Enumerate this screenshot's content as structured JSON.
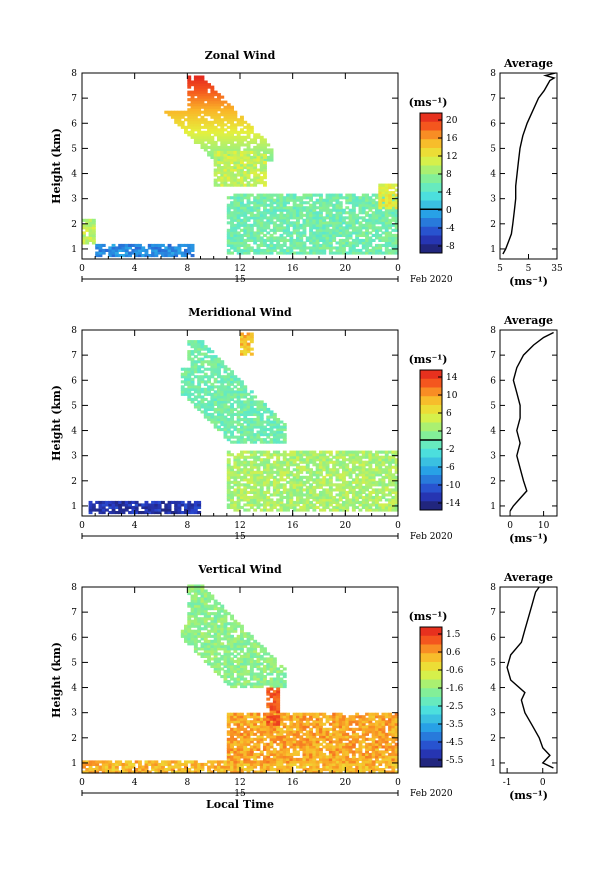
{
  "chart_data": [
    {
      "type": "heatmap",
      "title": "Zonal Wind",
      "ylabel": "Height (km)",
      "x_ticks": [
        "0",
        "4",
        "8",
        "12",
        "16",
        "20",
        "0"
      ],
      "y_ticks": [
        "1",
        "2",
        "3",
        "4",
        "5",
        "6",
        "7",
        "8"
      ],
      "ylim": [
        0.6,
        8.0
      ],
      "xlim": [
        0,
        24
      ],
      "date_label": "15",
      "month_label": "Feb 2020",
      "colorbar": {
        "unit": "(ms⁻¹)",
        "ticks": [
          "20",
          "16",
          "12",
          "8",
          "4",
          "0",
          "-4",
          "-8"
        ],
        "min": -10,
        "max": 22,
        "zero_line": 0
      },
      "average": {
        "title": "Average",
        "unit": "(ms⁻¹)",
        "x_ticks": [
          "5",
          "5",
          "35"
        ],
        "xlim": [
          -5,
          35
        ],
        "profile": [
          [
            -3,
            0.8
          ],
          [
            -1,
            1.0
          ],
          [
            1,
            1.3
          ],
          [
            3,
            1.6
          ],
          [
            4,
            2.0
          ],
          [
            5,
            2.5
          ],
          [
            6,
            3.0
          ],
          [
            6,
            3.5
          ],
          [
            7,
            4.0
          ],
          [
            8,
            4.5
          ],
          [
            9,
            5.0
          ],
          [
            11,
            5.5
          ],
          [
            14,
            6.0
          ],
          [
            18,
            6.5
          ],
          [
            22,
            7.0
          ],
          [
            26,
            7.3
          ],
          [
            28,
            7.5
          ],
          [
            30,
            7.7
          ],
          [
            33,
            7.8
          ],
          [
            27,
            7.9
          ],
          [
            34,
            8.0
          ]
        ]
      },
      "blobs": [
        {
          "t0": 6.0,
          "t1": 14.4,
          "h0": 4.5,
          "h1": 7.8,
          "v": "grad"
        },
        {
          "t0": 10.0,
          "t1": 14.0,
          "h0": 3.5,
          "h1": 4.8,
          "v": 10
        },
        {
          "t0": 11.0,
          "t1": 24.0,
          "h0": 0.8,
          "h1": 3.2,
          "v": 6
        },
        {
          "t0": 0.0,
          "t1": 1.0,
          "h0": 1.2,
          "h1": 2.2,
          "v": 10
        },
        {
          "t0": 1.0,
          "t1": 8.5,
          "h0": 0.7,
          "h1": 1.1,
          "v": -2
        },
        {
          "t0": 22.5,
          "t1": 24,
          "h0": 2.6,
          "h1": 3.6,
          "v": 12
        }
      ]
    },
    {
      "type": "heatmap",
      "title": "Meridional Wind",
      "ylabel": "Height (km)",
      "x_ticks": [
        "0",
        "4",
        "8",
        "12",
        "16",
        "20",
        "0"
      ],
      "y_ticks": [
        "1",
        "2",
        "3",
        "4",
        "5",
        "6",
        "7",
        "8"
      ],
      "ylim": [
        0.6,
        8.0
      ],
      "xlim": [
        0,
        24
      ],
      "date_label": "15",
      "month_label": "Feb 2020",
      "colorbar": {
        "unit": "(ms⁻¹)",
        "ticks": [
          "14",
          "10",
          "6",
          "2",
          "-2",
          "-6",
          "-10",
          "-14"
        ],
        "min": -16,
        "max": 16,
        "zero_line": 0
      },
      "average": {
        "title": "Average",
        "unit": "(ms⁻¹)",
        "x_ticks": [
          "0",
          "10"
        ],
        "xlim": [
          -3,
          14
        ],
        "profile": [
          [
            0,
            0.8
          ],
          [
            1,
            1.0
          ],
          [
            3,
            1.3
          ],
          [
            5,
            1.6
          ],
          [
            4,
            2.0
          ],
          [
            3,
            2.5
          ],
          [
            2,
            3.0
          ],
          [
            3,
            3.5
          ],
          [
            2,
            4.0
          ],
          [
            3,
            4.5
          ],
          [
            3,
            5.0
          ],
          [
            2,
            5.5
          ],
          [
            1,
            6.0
          ],
          [
            2,
            6.5
          ],
          [
            4,
            7.0
          ],
          [
            7,
            7.4
          ],
          [
            10,
            7.7
          ],
          [
            13,
            7.9
          ]
        ]
      },
      "blobs": [
        {
          "t0": 7.5,
          "t1": 15.5,
          "h0": 3.5,
          "h1": 7.5,
          "v": 0
        },
        {
          "t0": 12.0,
          "t1": 13.0,
          "h0": 7.0,
          "h1": 7.8,
          "v": 9
        },
        {
          "t0": 11.0,
          "t1": 24.0,
          "h0": 0.8,
          "h1": 3.2,
          "v": 3
        },
        {
          "t0": 0.5,
          "t1": 9.0,
          "h0": 0.7,
          "h1": 1.1,
          "v": -13
        }
      ]
    },
    {
      "type": "heatmap",
      "title": "Vertical Wind",
      "ylabel": "Height (km)",
      "xlabel": "Local Time",
      "x_ticks": [
        "0",
        "4",
        "8",
        "12",
        "16",
        "20",
        "0"
      ],
      "y_ticks": [
        "1",
        "2",
        "3",
        "4",
        "5",
        "6",
        "7",
        "8"
      ],
      "ylim": [
        0.6,
        8.0
      ],
      "xlim": [
        0,
        24
      ],
      "date_label": "15",
      "month_label": "Feb 2020",
      "colorbar": {
        "unit": "(ms⁻¹)",
        "ticks": [
          "1.5",
          "0.6",
          "-0.6",
          "-1.6",
          "-2.5",
          "-3.5",
          "-4.5",
          "-5.5"
        ],
        "min": -6.0,
        "max": 2.0,
        "zero_line": null
      },
      "average": {
        "title": "Average",
        "unit": "(ms⁻¹)",
        "x_ticks": [
          "-1",
          "0"
        ],
        "xlim": [
          -1.2,
          0.4
        ],
        "profile": [
          [
            0.3,
            0.8
          ],
          [
            0.0,
            1.0
          ],
          [
            0.2,
            1.3
          ],
          [
            0.0,
            1.6
          ],
          [
            -0.1,
            2.0
          ],
          [
            -0.3,
            2.5
          ],
          [
            -0.5,
            3.0
          ],
          [
            -0.6,
            3.5
          ],
          [
            -0.5,
            3.8
          ],
          [
            -0.9,
            4.3
          ],
          [
            -1.0,
            4.8
          ],
          [
            -0.9,
            5.3
          ],
          [
            -0.6,
            5.8
          ],
          [
            -0.5,
            6.3
          ],
          [
            -0.4,
            6.8
          ],
          [
            -0.3,
            7.3
          ],
          [
            -0.2,
            7.8
          ],
          [
            -0.1,
            8.0
          ]
        ]
      },
      "blobs": [
        {
          "t0": 7.5,
          "t1": 15.5,
          "h0": 4.0,
          "h1": 8.0,
          "v": -1.6
        },
        {
          "t0": 0.0,
          "t1": 24.0,
          "h0": 0.6,
          "h1": 1.0,
          "v": 0.3
        },
        {
          "t0": 11.0,
          "t1": 24.0,
          "h0": 1.0,
          "h1": 3.0,
          "v": 0.5
        },
        {
          "t0": 14.0,
          "t1": 15.0,
          "h0": 2.5,
          "h1": 4.0,
          "v": 1.2
        }
      ]
    }
  ]
}
